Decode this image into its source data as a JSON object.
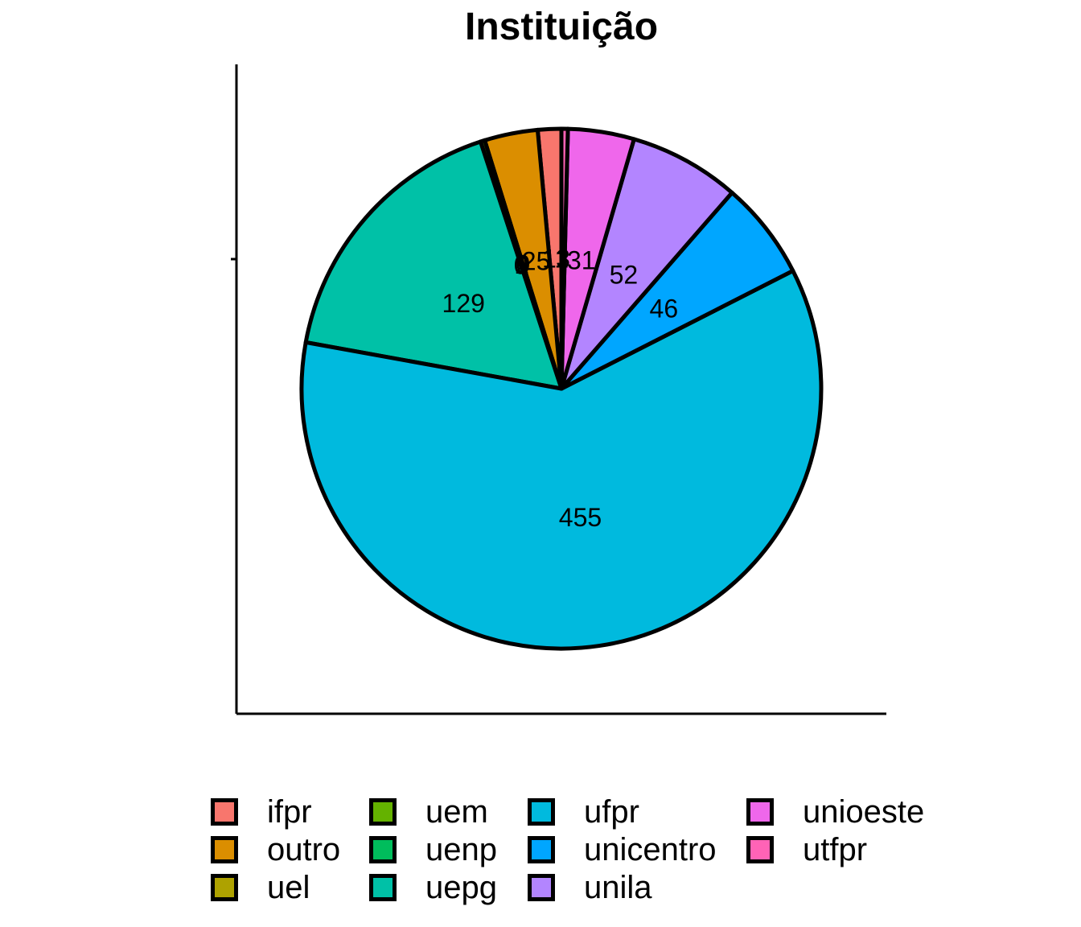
{
  "chart_data": {
    "type": "pie",
    "title": "Instituição",
    "slices": [
      {
        "name": "ifpr",
        "value": 11,
        "color": "#F8766D",
        "label": "11"
      },
      {
        "name": "outro",
        "value": 25,
        "color": "#DB8E00",
        "label": "25"
      },
      {
        "name": "uel",
        "value": 0,
        "color": "#AEA200",
        "label": "0"
      },
      {
        "name": "uem",
        "value": 2,
        "color": "#64B200",
        "label": "2"
      },
      {
        "name": "uenp",
        "value": 0,
        "color": "#00BD5C",
        "label": "0"
      },
      {
        "name": "uepg",
        "value": 129,
        "color": "#00C1A7",
        "label": "129"
      },
      {
        "name": "ufpr",
        "value": 455,
        "color": "#00BADE",
        "label": "455"
      },
      {
        "name": "unicentro",
        "value": 46,
        "color": "#00A6FF",
        "label": "46"
      },
      {
        "name": "unila",
        "value": 52,
        "color": "#B385FF",
        "label": "52"
      },
      {
        "name": "unioeste",
        "value": 31,
        "color": "#EF67EB",
        "label": "31"
      },
      {
        "name": "utfpr",
        "value": 3,
        "color": "#FF63B6",
        "label": "3"
      }
    ],
    "legend_position": "bottom",
    "direction": "counterclockwise from top"
  }
}
